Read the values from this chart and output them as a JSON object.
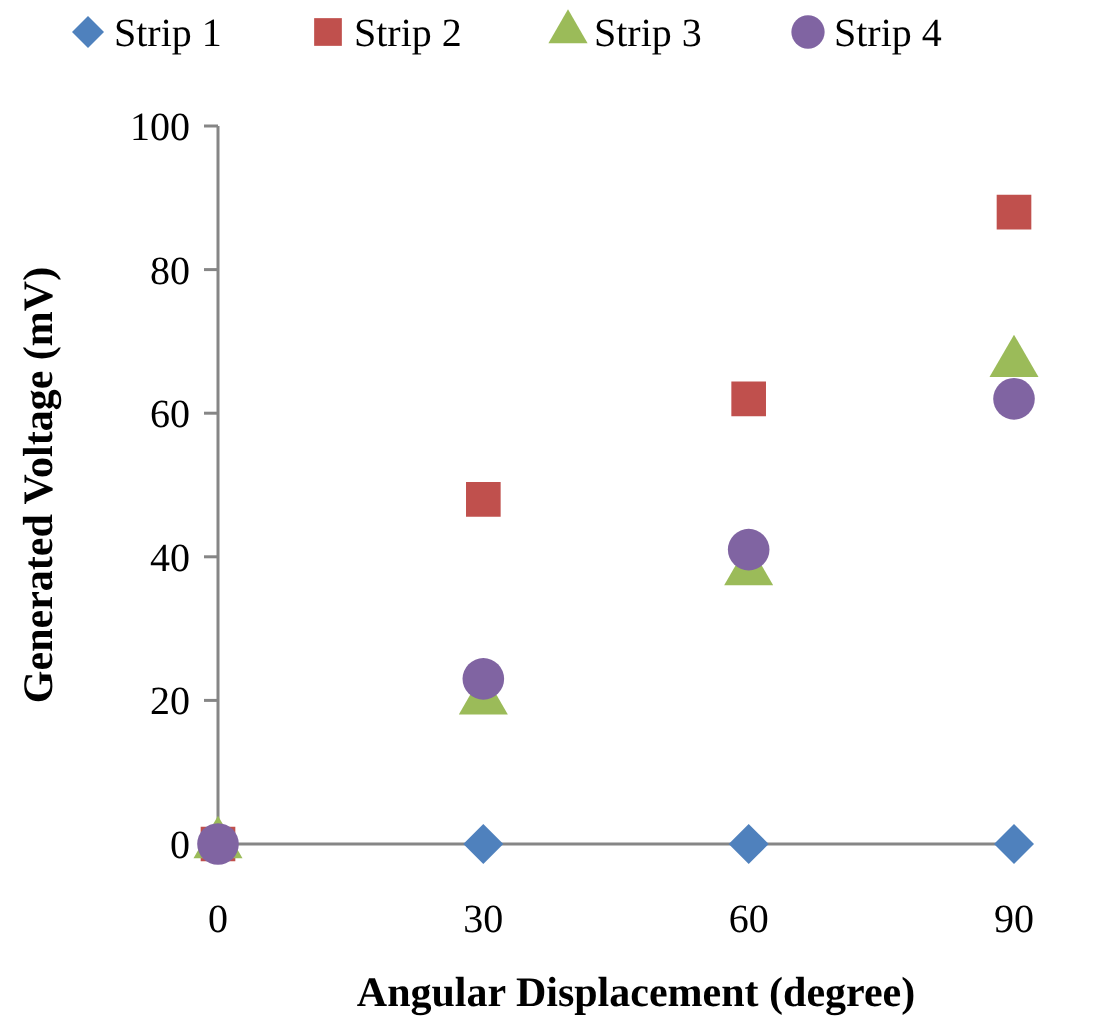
{
  "chart_data": {
    "type": "scatter",
    "xlabel": "Angular Displacement (degree)",
    "ylabel": "Generated Voltage (mV)",
    "x": [
      0,
      30,
      60,
      90
    ],
    "xlim": [
      0,
      90
    ],
    "xticks": [
      0,
      30,
      60,
      90
    ],
    "ylim": [
      0,
      100
    ],
    "yticks": [
      0,
      20,
      40,
      60,
      80,
      100
    ],
    "grid": false,
    "legend": "top",
    "series": [
      {
        "name": "Strip 1",
        "color": "#4f81bd",
        "marker": "diamond",
        "values": [
          null,
          0,
          0,
          0
        ]
      },
      {
        "name": "Strip 2",
        "color": "#c0504d",
        "marker": "square",
        "values": [
          0,
          48,
          62,
          88
        ]
      },
      {
        "name": "Strip 3",
        "color": "#9bbb59",
        "marker": "triangle",
        "values": [
          0,
          20,
          38,
          67
        ]
      },
      {
        "name": "Strip 4",
        "color": "#8064a2",
        "marker": "circle",
        "values": [
          0,
          23,
          41,
          62
        ]
      }
    ]
  }
}
